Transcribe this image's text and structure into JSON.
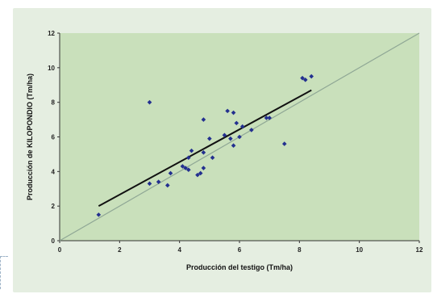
{
  "chart_data": {
    "type": "scatter",
    "title": "",
    "xlabel": "Producción del testigo (Tm/ha)",
    "ylabel": "Producción de KILOPONDIO (Tm/ha)",
    "xlim": [
      0,
      12
    ],
    "ylim": [
      0,
      12
    ],
    "x_ticks": [
      "0",
      "2",
      "4",
      "6",
      "8",
      "10",
      "12"
    ],
    "y_ticks": [
      "0",
      "2",
      "4",
      "6",
      "8",
      "10",
      "12"
    ],
    "grid": false,
    "legend": "none",
    "plot_background": "#c9e0bb",
    "point_color": "#23308f",
    "points": [
      {
        "x": 1.3,
        "y": 1.5
      },
      {
        "x": 3.0,
        "y": 8.0
      },
      {
        "x": 3.0,
        "y": 3.3
      },
      {
        "x": 3.3,
        "y": 3.4
      },
      {
        "x": 3.6,
        "y": 3.2
      },
      {
        "x": 3.7,
        "y": 3.9
      },
      {
        "x": 4.1,
        "y": 4.3
      },
      {
        "x": 4.2,
        "y": 4.2
      },
      {
        "x": 4.3,
        "y": 4.1
      },
      {
        "x": 4.3,
        "y": 4.8
      },
      {
        "x": 4.4,
        "y": 5.2
      },
      {
        "x": 4.6,
        "y": 3.8
      },
      {
        "x": 4.7,
        "y": 3.9
      },
      {
        "x": 4.8,
        "y": 4.2
      },
      {
        "x": 4.8,
        "y": 5.1
      },
      {
        "x": 4.8,
        "y": 7.0
      },
      {
        "x": 5.0,
        "y": 5.9
      },
      {
        "x": 5.1,
        "y": 4.8
      },
      {
        "x": 5.5,
        "y": 6.1
      },
      {
        "x": 5.6,
        "y": 7.5
      },
      {
        "x": 5.7,
        "y": 5.9
      },
      {
        "x": 5.8,
        "y": 5.5
      },
      {
        "x": 5.8,
        "y": 7.4
      },
      {
        "x": 5.9,
        "y": 6.8
      },
      {
        "x": 6.0,
        "y": 6.0
      },
      {
        "x": 6.1,
        "y": 6.6
      },
      {
        "x": 6.4,
        "y": 6.4
      },
      {
        "x": 6.9,
        "y": 7.1
      },
      {
        "x": 7.0,
        "y": 7.1
      },
      {
        "x": 7.5,
        "y": 5.6
      },
      {
        "x": 8.1,
        "y": 9.4
      },
      {
        "x": 8.2,
        "y": 9.3
      },
      {
        "x": 8.4,
        "y": 9.5
      }
    ],
    "series": [
      {
        "type": "line",
        "points": [
          [
            1.3,
            2.0
          ],
          [
            8.4,
            8.7
          ]
        ],
        "color": "#111111"
      },
      {
        "type": "line",
        "points": [
          [
            0,
            0
          ],
          [
            12,
            12
          ]
        ],
        "color": "#8fa795"
      }
    ]
  }
}
